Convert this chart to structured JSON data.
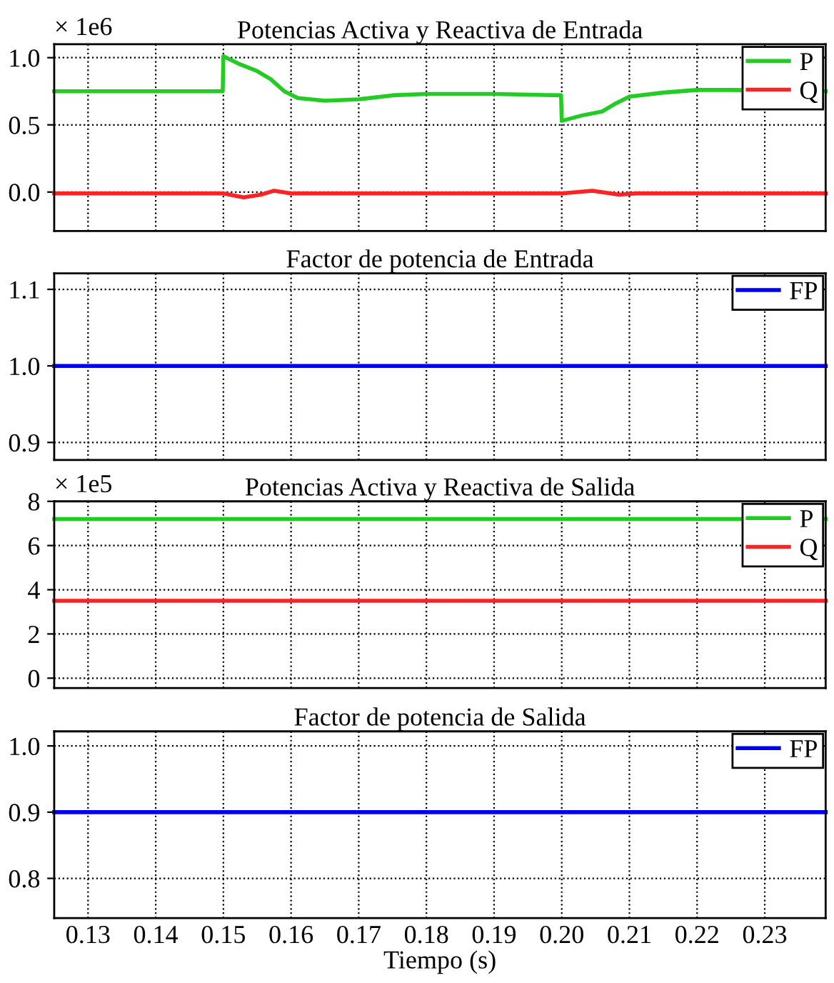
{
  "chart_data": [
    {
      "type": "line",
      "title": "Potencias Activa y Reactiva de Entrada",
      "annotations": [
        "× 1e6"
      ],
      "series": [
        {
          "name": "P",
          "color": "#22cc22",
          "x": [
            0.125,
            0.1499,
            0.15,
            0.1525,
            0.155,
            0.157,
            0.159,
            0.161,
            0.165,
            0.17,
            0.175,
            0.18,
            0.19,
            0.1999,
            0.2,
            0.203,
            0.206,
            0.208,
            0.21,
            0.215,
            0.22,
            0.225,
            0.239
          ],
          "values": [
            0.75,
            0.75,
            1.01,
            0.95,
            0.9,
            0.84,
            0.75,
            0.7,
            0.68,
            0.69,
            0.72,
            0.73,
            0.73,
            0.72,
            0.53,
            0.57,
            0.6,
            0.66,
            0.71,
            0.74,
            0.76,
            0.76,
            0.75
          ]
        },
        {
          "name": "Q",
          "color": "#ff2222",
          "x": [
            0.125,
            0.15,
            0.153,
            0.1555,
            0.1575,
            0.16,
            0.165,
            0.2,
            0.2045,
            0.2085,
            0.211,
            0.239
          ],
          "values": [
            -0.01,
            -0.01,
            -0.04,
            -0.02,
            0.01,
            -0.01,
            -0.01,
            -0.01,
            0.01,
            -0.02,
            -0.01,
            -0.01
          ]
        }
      ],
      "xlim": [
        0.125,
        0.239
      ],
      "xticks": [
        0.13,
        0.14,
        0.15,
        0.16,
        0.17,
        0.18,
        0.19,
        0.2,
        0.21,
        0.22,
        0.23
      ],
      "ylim": [
        -0.29,
        1.1
      ],
      "yticks": [
        {
          "value": 0,
          "label": "0.0"
        },
        {
          "value": 0.5,
          "label": "0.5"
        },
        {
          "value": 1.0,
          "label": "1.0"
        }
      ],
      "grid": true,
      "legend": "top right",
      "tick_labels": "y"
    },
    {
      "type": "line",
      "title": "Factor de potencia de Entrada",
      "series": [
        {
          "name": "FP",
          "color": "#0000ee",
          "x": [
            0.125,
            0.239
          ],
          "values": [
            1.0,
            1.0
          ]
        }
      ],
      "xlim": [
        0.125,
        0.239
      ],
      "xticks": [
        0.13,
        0.14,
        0.15,
        0.16,
        0.17,
        0.18,
        0.19,
        0.2,
        0.21,
        0.22,
        0.23
      ],
      "ylim": [
        0.877,
        1.121
      ],
      "yticks": [
        {
          "value": 0.9,
          "label": "0.9"
        },
        {
          "value": 1.0,
          "label": "1.0"
        },
        {
          "value": 1.1,
          "label": "1.1"
        }
      ],
      "grid": true,
      "legend": "top right",
      "tick_labels": "y"
    },
    {
      "type": "line",
      "title": "Potencias Activa y Reactiva de Salida",
      "annotations": [
        "× 1e5"
      ],
      "series": [
        {
          "name": "P",
          "color": "#22cc22",
          "x": [
            0.125,
            0.239
          ],
          "values": [
            7.2,
            7.2
          ]
        },
        {
          "name": "Q",
          "color": "#ff2222",
          "x": [
            0.125,
            0.239
          ],
          "values": [
            3.5,
            3.5
          ]
        }
      ],
      "xlim": [
        0.125,
        0.239
      ],
      "xticks": [
        0.13,
        0.14,
        0.15,
        0.16,
        0.17,
        0.18,
        0.19,
        0.2,
        0.21,
        0.22,
        0.23
      ],
      "ylim": [
        -0.45,
        8
      ],
      "yticks": [
        0,
        2,
        4,
        6,
        8
      ],
      "grid": true,
      "legend": "top right",
      "tick_labels": "y"
    },
    {
      "type": "line",
      "title": "Factor de potencia de Salida",
      "xlabel": "Tiempo (s)",
      "series": [
        {
          "name": "FP",
          "color": "#0000ee",
          "x": [
            0.125,
            0.239
          ],
          "values": [
            0.9,
            0.9
          ]
        }
      ],
      "xlim": [
        0.125,
        0.239
      ],
      "xticks": [
        {
          "value": 0.13,
          "label": "0.13"
        },
        {
          "value": 0.14,
          "label": "0.14"
        },
        {
          "value": 0.15,
          "label": "0.15"
        },
        {
          "value": 0.16,
          "label": "0.16"
        },
        {
          "value": 0.17,
          "label": "0.17"
        },
        {
          "value": 0.18,
          "label": "0.18"
        },
        {
          "value": 0.19,
          "label": "0.19"
        },
        {
          "value": 0.2,
          "label": "0.20"
        },
        {
          "value": 0.21,
          "label": "0.21"
        },
        {
          "value": 0.22,
          "label": "0.22"
        },
        {
          "value": 0.23,
          "label": "0.23"
        }
      ],
      "ylim": [
        0.74,
        1.022
      ],
      "yticks": [
        {
          "value": 0.8,
          "label": "0.8"
        },
        {
          "value": 0.9,
          "label": "0.9"
        },
        {
          "value": 1.0,
          "label": "1.0"
        }
      ],
      "grid": true,
      "legend": "top right"
    }
  ]
}
